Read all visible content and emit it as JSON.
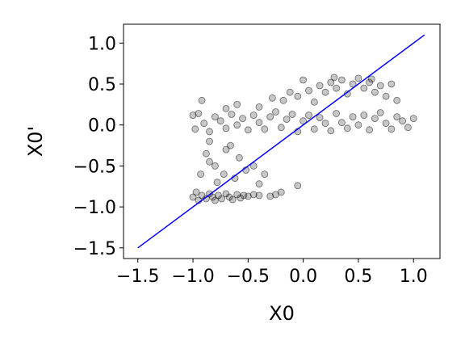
{
  "chart_data": {
    "type": "scatter",
    "title": "",
    "xlabel": "X0",
    "ylabel": "X0'",
    "xlim": [
      -1.63,
      1.24
    ],
    "ylim": [
      -1.63,
      1.23
    ],
    "xticks": [
      -1.5,
      -1.0,
      -0.5,
      0.0,
      0.5,
      1.0
    ],
    "xtick_labels": [
      "−1.5",
      "−1.0",
      "−0.5",
      "0.0",
      "0.5",
      "1.0"
    ],
    "yticks": [
      -1.5,
      -1.0,
      -0.5,
      0.0,
      0.5,
      1.0
    ],
    "ytick_labels": [
      "−1.5",
      "−1.0",
      "−0.5",
      "0.0",
      "0.5",
      "1.0"
    ],
    "grid": false,
    "colors": {
      "points": "#000000",
      "line": "#0000ff",
      "axes": "#000000"
    },
    "reference_line": {
      "x": [
        -1.5,
        1.1
      ],
      "y": [
        -1.5,
        1.1
      ]
    },
    "series": [
      {
        "points": [
          [
            -1.0,
            0.12
          ],
          [
            -0.98,
            -0.05
          ],
          [
            -0.95,
            0.14
          ],
          [
            -0.9,
            0.02
          ],
          [
            -0.85,
            -0.08
          ],
          [
            -0.8,
            0.1
          ],
          [
            -0.75,
            0.05
          ],
          [
            -0.7,
            -0.04
          ],
          [
            -0.65,
            0.13
          ],
          [
            -0.6,
            0.0
          ],
          [
            -0.55,
            0.08
          ],
          [
            -0.5,
            -0.06
          ],
          [
            -0.45,
            0.12
          ],
          [
            -0.4,
            0.03
          ],
          [
            -0.35,
            -0.05
          ],
          [
            -0.3,
            0.1
          ],
          [
            -0.25,
            0.16
          ],
          [
            -0.2,
            -0.03
          ],
          [
            -0.15,
            0.07
          ],
          [
            -0.1,
            0.13
          ],
          [
            -0.05,
            -0.08
          ],
          [
            0.0,
            0.05
          ],
          [
            0.05,
            0.12
          ],
          [
            0.1,
            -0.05
          ],
          [
            0.15,
            0.09
          ],
          [
            0.2,
            0.02
          ],
          [
            0.25,
            -0.07
          ],
          [
            0.3,
            0.14
          ],
          [
            0.35,
            0.03
          ],
          [
            0.4,
            -0.04
          ],
          [
            0.45,
            0.1
          ],
          [
            0.5,
            0.0
          ],
          [
            0.55,
            0.12
          ],
          [
            0.6,
            -0.06
          ],
          [
            0.65,
            0.08
          ],
          [
            0.7,
            0.15
          ],
          [
            0.75,
            0.02
          ],
          [
            0.8,
            -0.05
          ],
          [
            0.85,
            0.1
          ],
          [
            0.9,
            0.05
          ],
          [
            0.95,
            -0.03
          ],
          [
            1.0,
            0.08
          ],
          [
            -0.92,
            0.3
          ],
          [
            -0.7,
            0.2
          ],
          [
            -0.6,
            0.25
          ],
          [
            -0.4,
            0.22
          ],
          [
            -0.28,
            0.33
          ],
          [
            -0.18,
            0.3
          ],
          [
            -0.05,
            0.35
          ],
          [
            0.05,
            0.42
          ],
          [
            0.1,
            0.28
          ],
          [
            0.15,
            0.48
          ],
          [
            0.2,
            0.4
          ],
          [
            0.25,
            0.52
          ],
          [
            0.3,
            0.45
          ],
          [
            0.35,
            0.55
          ],
          [
            0.4,
            0.38
          ],
          [
            0.45,
            0.5
          ],
          [
            0.5,
            0.57
          ],
          [
            0.55,
            0.45
          ],
          [
            0.6,
            0.52
          ],
          [
            0.65,
            0.4
          ],
          [
            0.7,
            0.48
          ],
          [
            0.75,
            0.35
          ],
          [
            0.8,
            0.5
          ],
          [
            0.85,
            0.3
          ],
          [
            0.0,
            0.55
          ],
          [
            0.28,
            0.58
          ],
          [
            0.62,
            0.56
          ],
          [
            -0.12,
            0.4
          ],
          [
            -1.0,
            -0.88
          ],
          [
            -0.97,
            -0.82
          ],
          [
            -0.95,
            -0.92
          ],
          [
            -0.92,
            -0.86
          ],
          [
            -0.88,
            -0.9
          ],
          [
            -0.85,
            -0.84
          ],
          [
            -0.82,
            -0.88
          ],
          [
            -0.8,
            -0.92
          ],
          [
            -0.77,
            -0.86
          ],
          [
            -0.74,
            -0.9
          ],
          [
            -0.7,
            -0.84
          ],
          [
            -0.67,
            -0.88
          ],
          [
            -0.64,
            -0.91
          ],
          [
            -0.6,
            -0.85
          ],
          [
            -0.57,
            -0.89
          ],
          [
            -0.54,
            -0.86
          ],
          [
            -0.5,
            -0.87
          ],
          [
            -0.45,
            -0.85
          ],
          [
            -0.4,
            -0.86
          ],
          [
            -0.3,
            -0.87
          ],
          [
            -0.25,
            -0.85
          ],
          [
            -0.2,
            -0.82
          ],
          [
            -0.05,
            -0.74
          ],
          [
            -0.88,
            -0.35
          ],
          [
            -0.85,
            -0.45
          ],
          [
            -0.8,
            -0.5
          ],
          [
            -0.72,
            -0.6
          ],
          [
            -0.7,
            -0.3
          ],
          [
            -0.62,
            -0.65
          ],
          [
            -0.58,
            -0.4
          ],
          [
            -0.52,
            -0.55
          ],
          [
            -0.45,
            -0.5
          ],
          [
            -0.4,
            -0.72
          ],
          [
            -0.35,
            -0.6
          ],
          [
            -0.85,
            -0.2
          ],
          [
            -0.78,
            -0.7
          ],
          [
            -0.93,
            -0.6
          ],
          [
            -0.66,
            -0.25
          ]
        ]
      }
    ]
  }
}
